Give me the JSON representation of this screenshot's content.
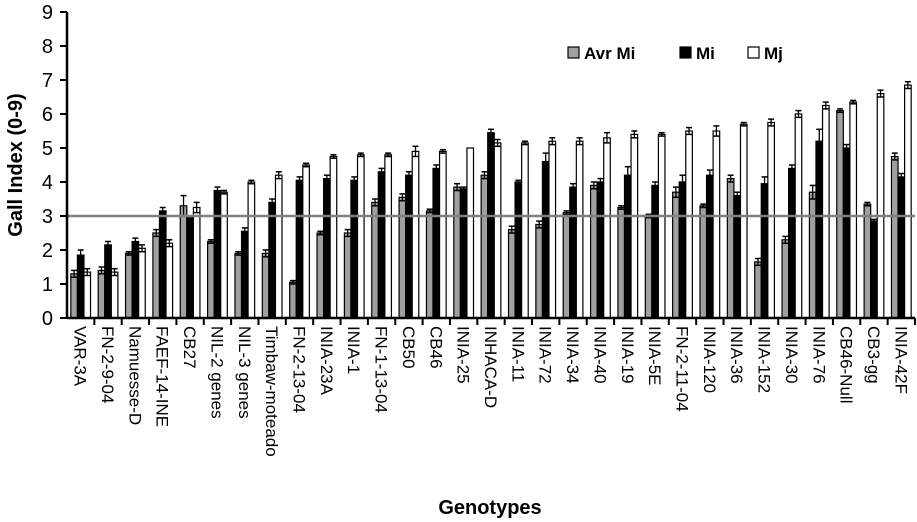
{
  "chart_data": {
    "type": "bar",
    "title": "",
    "xlabel": "Genotypes",
    "ylabel": "Gall Index (0-9)",
    "ylim": [
      0,
      9
    ],
    "yticks": [
      "0",
      "1",
      "2",
      "3",
      "4",
      "5",
      "6",
      "7",
      "8",
      "9"
    ],
    "grid": false,
    "legend_position": "top-right",
    "reference_line": 3.0,
    "reference_line_color": "#808080",
    "categories": [
      "VAR-3A",
      "FN-2-9-04",
      "Namuesse-D",
      "FAEF-14-INE",
      "CB27",
      "NIL-2 genes",
      "NIL-3 genes",
      "Timbaw-moteado",
      "FN-2-13-04",
      "INIA-23A",
      "INIA-1",
      "FN-1-13-04",
      "CB50",
      "CB46",
      "INIA-25",
      "INHACA-D",
      "INIA-11",
      "INIA-72",
      "INIA-34",
      "INIA-40",
      "INIA-19",
      "INIA-5E",
      "FN-2-11-04",
      "INIA-120",
      "INIA-36",
      "INIA-152",
      "INIA-30",
      "INIA-76",
      "CB46-Null",
      "CB3-gg",
      "INIA-42F"
    ],
    "series": [
      {
        "name": "Avr Mi",
        "color": "#a0a0a0",
        "values": [
          1.3,
          1.4,
          1.9,
          2.5,
          3.3,
          2.25,
          1.9,
          1.9,
          1.05,
          2.5,
          2.5,
          3.4,
          3.55,
          3.15,
          3.85,
          4.2,
          2.6,
          2.75,
          3.1,
          3.9,
          3.25,
          3.0,
          3.7,
          3.3,
          4.1,
          1.65,
          2.3,
          3.7,
          6.1,
          3.35,
          4.75
        ],
        "errors": [
          0.1,
          0.1,
          0.05,
          0.1,
          0.3,
          0.05,
          0.05,
          0.1,
          0.05,
          0.05,
          0.1,
          0.1,
          0.1,
          0.05,
          0.1,
          0.1,
          0.1,
          0.1,
          0.05,
          0.1,
          0.05,
          0.05,
          0.15,
          0.05,
          0.1,
          0.1,
          0.1,
          0.2,
          0.05,
          0.05,
          0.1
        ]
      },
      {
        "name": "Mi",
        "color": "#000000",
        "values": [
          1.85,
          2.15,
          2.25,
          3.15,
          2.95,
          3.75,
          2.55,
          3.4,
          4.05,
          4.1,
          4.05,
          4.3,
          4.2,
          4.4,
          3.8,
          5.45,
          4.0,
          4.6,
          3.85,
          4.0,
          4.2,
          3.9,
          4.0,
          4.2,
          3.6,
          3.95,
          4.4,
          5.2,
          5.0,
          2.85,
          4.15
        ],
        "errors": [
          0.15,
          0.1,
          0.1,
          0.1,
          0.05,
          0.1,
          0.1,
          0.1,
          0.1,
          0.1,
          0.1,
          0.1,
          0.1,
          0.1,
          0.05,
          0.1,
          0.05,
          0.25,
          0.1,
          0.1,
          0.25,
          0.1,
          0.2,
          0.15,
          0.1,
          0.2,
          0.1,
          0.35,
          0.1,
          0.05,
          0.1
        ]
      },
      {
        "name": "Mj",
        "color": "#ffffff",
        "values": [
          1.35,
          1.35,
          2.05,
          2.2,
          3.25,
          3.7,
          4.0,
          4.2,
          4.5,
          4.75,
          4.8,
          4.8,
          4.9,
          4.9,
          5.0,
          5.15,
          5.15,
          5.2,
          5.2,
          5.3,
          5.4,
          5.4,
          5.5,
          5.5,
          5.7,
          5.75,
          6.0,
          6.25,
          6.35,
          6.6,
          6.85
        ],
        "errors": [
          0.1,
          0.1,
          0.1,
          0.1,
          0.15,
          0.05,
          0.05,
          0.1,
          0.05,
          0.05,
          0.05,
          0.05,
          0.15,
          0.05,
          0.0,
          0.1,
          0.05,
          0.1,
          0.1,
          0.15,
          0.1,
          0.05,
          0.1,
          0.15,
          0.05,
          0.1,
          0.1,
          0.1,
          0.05,
          0.1,
          0.1
        ]
      }
    ]
  }
}
